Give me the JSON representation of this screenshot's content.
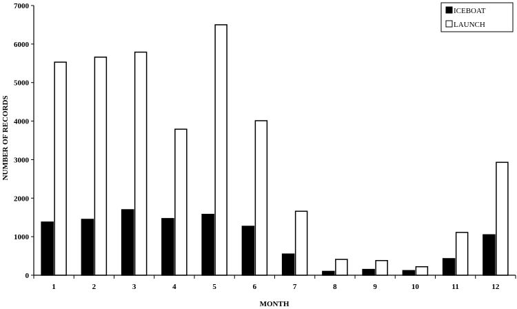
{
  "chart_data": {
    "type": "bar",
    "title": "",
    "xlabel": "MONTH",
    "ylabel": "NUMBER OF RECORDS",
    "categories": [
      "1",
      "2",
      "3",
      "4",
      "5",
      "6",
      "7",
      "8",
      "9",
      "10",
      "11",
      "12"
    ],
    "ylim": [
      0,
      7000
    ],
    "yticks": [
      0,
      1000,
      2000,
      3000,
      4000,
      5000,
      6000,
      7000
    ],
    "grid": false,
    "legend_position": "top-right",
    "series": [
      {
        "name": "ICEBOAT",
        "color": "#000000",
        "values": [
          1380,
          1450,
          1700,
          1470,
          1580,
          1270,
          550,
          100,
          150,
          120,
          430,
          1050
        ]
      },
      {
        "name": "LAUNCH",
        "color": "#ffffff",
        "values": [
          5530,
          5660,
          5790,
          3790,
          6500,
          4010,
          1660,
          410,
          380,
          220,
          1110,
          2930
        ]
      }
    ]
  }
}
